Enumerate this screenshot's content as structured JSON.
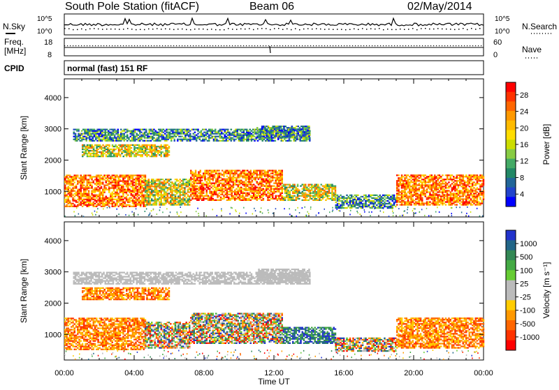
{
  "header": {
    "station": "South Pole Station (fitACF)",
    "beam": "Beam 06",
    "date": "02/May/2014"
  },
  "strip_labels": {
    "nsky": "N.Sky",
    "nsearch": "N.Search",
    "freq_line1": "Freq.",
    "freq_line2": "[MHz]",
    "nave": "Nave",
    "cpid": "CPID",
    "cpid_value": "normal (fast) 151 RF",
    "noise_ticks_left": [
      "10^5",
      "10^0"
    ],
    "noise_ticks_right": [
      "10^5",
      "10^0"
    ],
    "freq_ticks": [
      "18",
      "8"
    ],
    "nave_ticks": [
      "60",
      "0"
    ]
  },
  "chart_data": [
    {
      "type": "heatmap",
      "name": "power",
      "ylabel": "Slant Range [km]",
      "xlabel": "Time UT",
      "ylim": [
        180,
        4600
      ],
      "yticks": [
        1000,
        2000,
        3000,
        4000
      ],
      "xticks": [
        "00:00",
        "04:00",
        "08:00",
        "12:00",
        "16:00",
        "20:00",
        "00:00"
      ],
      "colorbar": {
        "label": "Power [dB]",
        "ticks": [
          "28",
          "24",
          "20",
          "16",
          "12",
          "8",
          "4"
        ],
        "colors": [
          "#ff0000",
          "#ff3300",
          "#ff6600",
          "#ff9900",
          "#ffbb00",
          "#ffdd00",
          "#ccdd00",
          "#88cc44",
          "#44aa66",
          "#228866",
          "#226699",
          "#2244cc",
          "#0000ff"
        ]
      },
      "bands": [
        {
          "t": [
            0.0,
            4.6
          ],
          "r": [
            500,
            1500
          ],
          "level": "high"
        },
        {
          "t": [
            4.6,
            7.2
          ],
          "r": [
            550,
            1400
          ],
          "level": "mid"
        },
        {
          "t": [
            7.2,
            12.5
          ],
          "r": [
            700,
            1650
          ],
          "level": "high"
        },
        {
          "t": [
            12.5,
            15.5
          ],
          "r": [
            700,
            1200
          ],
          "level": "mid"
        },
        {
          "t": [
            15.5,
            19.0
          ],
          "r": [
            450,
            900
          ],
          "level": "low"
        },
        {
          "t": [
            19.0,
            24.0
          ],
          "r": [
            550,
            1500
          ],
          "level": "high"
        },
        {
          "t": [
            1.0,
            6.0
          ],
          "r": [
            2100,
            2500
          ],
          "level": "mid"
        },
        {
          "t": [
            0.5,
            14.0
          ],
          "r": [
            2600,
            3000
          ],
          "level": "low"
        },
        {
          "t": [
            11.0,
            14.0
          ],
          "r": [
            2700,
            3100
          ],
          "level": "low"
        }
      ]
    },
    {
      "type": "heatmap",
      "name": "velocity",
      "ylabel": "Slant Range [km]",
      "xlabel": "Time UT",
      "ylim": [
        180,
        4600
      ],
      "yticks": [
        1000,
        2000,
        3000,
        4000
      ],
      "xticks": [
        "00:00",
        "04:00",
        "08:00",
        "12:00",
        "16:00",
        "20:00",
        "00:00"
      ],
      "colorbar": {
        "label": "Velocity [m s^-1]",
        "ticks": [
          "1000",
          "500",
          "100",
          "25",
          "-25",
          "-100",
          "-500",
          "-1000"
        ],
        "colors": [
          "#2233cc",
          "#226688",
          "#338855",
          "#44aa44",
          "#66cc33",
          "#bbbbbb",
          "#bbbbbb",
          "#ffcc00",
          "#ff9900",
          "#ff6600",
          "#ff3300",
          "#ff0000"
        ]
      },
      "bands": [
        {
          "t": [
            0.0,
            4.6
          ],
          "r": [
            500,
            1500
          ],
          "level": "neg"
        },
        {
          "t": [
            4.6,
            7.2
          ],
          "r": [
            550,
            1400
          ],
          "level": "mix"
        },
        {
          "t": [
            7.2,
            12.5
          ],
          "r": [
            700,
            1650
          ],
          "level": "mix"
        },
        {
          "t": [
            12.5,
            15.5
          ],
          "r": [
            700,
            1200
          ],
          "level": "pos"
        },
        {
          "t": [
            15.5,
            19.0
          ],
          "r": [
            450,
            900
          ],
          "level": "mix"
        },
        {
          "t": [
            19.0,
            24.0
          ],
          "r": [
            550,
            1500
          ],
          "level": "neg"
        },
        {
          "t": [
            1.0,
            6.0
          ],
          "r": [
            2100,
            2500
          ],
          "level": "neg"
        },
        {
          "t": [
            0.5,
            14.0
          ],
          "r": [
            2600,
            3000
          ],
          "level": "zero"
        },
        {
          "t": [
            11.0,
            14.0
          ],
          "r": [
            2700,
            3100
          ],
          "level": "zero"
        }
      ]
    }
  ]
}
